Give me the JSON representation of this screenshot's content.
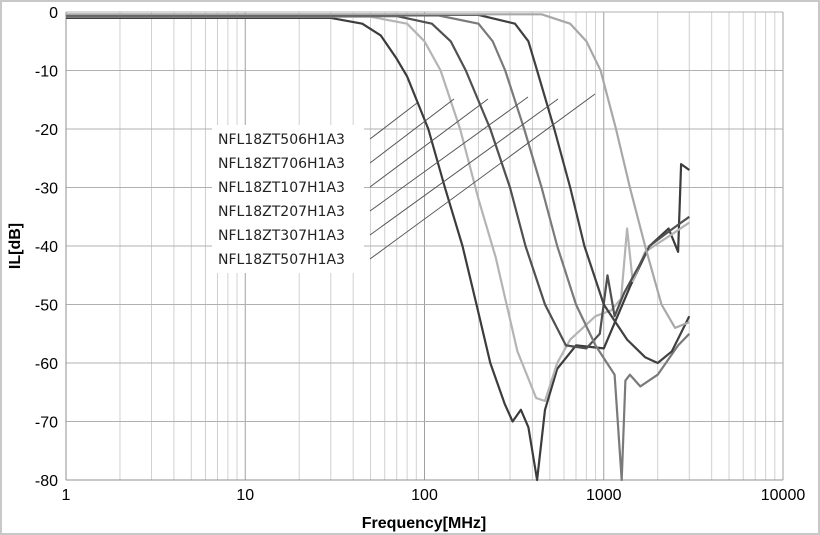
{
  "chart_data": {
    "type": "line",
    "xlabel": "Frequency[MHz]",
    "ylabel": "IL[dB]",
    "xscale": "log",
    "xlim": [
      1,
      10000
    ],
    "ylim": [
      -80,
      0
    ],
    "xticks": [
      "1",
      "10",
      "100",
      "1000",
      "10000"
    ],
    "yticks": [
      "0",
      "-10",
      "-20",
      "-30",
      "-40",
      "-50",
      "-60",
      "-70",
      "-80"
    ],
    "grid": true,
    "legend_placement": "center-left",
    "series": [
      {
        "name": "NFL18ZT506H1A3",
        "color": "#3c3c3c",
        "points": [
          [
            1,
            -1
          ],
          [
            30,
            -1
          ],
          [
            45,
            -2
          ],
          [
            57,
            -4
          ],
          [
            70,
            -8
          ],
          [
            80,
            -11
          ],
          [
            105,
            -20
          ],
          [
            130,
            -30
          ],
          [
            163,
            -40
          ],
          [
            195,
            -50
          ],
          [
            233,
            -60
          ],
          [
            280,
            -67
          ],
          [
            310,
            -70
          ],
          [
            345,
            -68
          ],
          [
            380,
            -71
          ],
          [
            425,
            -80
          ],
          [
            470,
            -68
          ],
          [
            550,
            -61
          ],
          [
            700,
            -57
          ],
          [
            1000,
            -57.5
          ],
          [
            1400,
            -47
          ],
          [
            1800,
            -40
          ],
          [
            2300,
            -37
          ],
          [
            2600,
            -41
          ],
          [
            2700,
            -26
          ],
          [
            3000,
            -27
          ]
        ]
      },
      {
        "name": "NFL18ZT706H1A3",
        "color": "#b4b4b4",
        "points": [
          [
            1,
            -0.8
          ],
          [
            50,
            -0.8
          ],
          [
            80,
            -2
          ],
          [
            100,
            -5
          ],
          [
            123,
            -10
          ],
          [
            158,
            -20
          ],
          [
            200,
            -32
          ],
          [
            250,
            -42
          ],
          [
            330,
            -58
          ],
          [
            420,
            -66
          ],
          [
            470,
            -66.5
          ],
          [
            550,
            -60
          ],
          [
            650,
            -56
          ],
          [
            900,
            -52
          ],
          [
            1100,
            -51
          ],
          [
            1250,
            -49
          ],
          [
            1350,
            -37
          ],
          [
            1450,
            -46
          ],
          [
            1700,
            -41
          ],
          [
            2400,
            -38
          ],
          [
            3000,
            -36
          ]
        ]
      },
      {
        "name": "NFL18ZT107H1A3",
        "color": "#505050",
        "points": [
          [
            1,
            -0.7
          ],
          [
            70,
            -0.7
          ],
          [
            110,
            -2
          ],
          [
            140,
            -5
          ],
          [
            170,
            -10
          ],
          [
            233,
            -20
          ],
          [
            300,
            -30
          ],
          [
            366,
            -40
          ],
          [
            470,
            -50
          ],
          [
            615,
            -57
          ],
          [
            800,
            -57.5
          ],
          [
            950,
            -55
          ],
          [
            1050,
            -45
          ],
          [
            1150,
            -52
          ],
          [
            1300,
            -48
          ],
          [
            1600,
            -43
          ],
          [
            1800,
            -40
          ],
          [
            2200,
            -38
          ],
          [
            2700,
            -36
          ],
          [
            3000,
            -35
          ]
        ]
      },
      {
        "name": "NFL18ZT207H1A3",
        "color": "#7a7a7a",
        "points": [
          [
            1,
            -0.6
          ],
          [
            120,
            -0.6
          ],
          [
            200,
            -2
          ],
          [
            240,
            -5
          ],
          [
            282,
            -10
          ],
          [
            360,
            -20
          ],
          [
            450,
            -30
          ],
          [
            550,
            -40
          ],
          [
            700,
            -50
          ],
          [
            900,
            -57
          ],
          [
            1150,
            -62
          ],
          [
            1260,
            -80
          ],
          [
            1320,
            -63
          ],
          [
            1400,
            -62
          ],
          [
            1600,
            -64
          ],
          [
            2000,
            -62
          ],
          [
            2600,
            -57
          ],
          [
            3000,
            -55
          ]
        ]
      },
      {
        "name": "NFL18ZT307H1A3",
        "color": "#404040",
        "points": [
          [
            1,
            -0.5
          ],
          [
            200,
            -0.5
          ],
          [
            320,
            -2
          ],
          [
            380,
            -5
          ],
          [
            425,
            -10
          ],
          [
            530,
            -20
          ],
          [
            650,
            -30
          ],
          [
            780,
            -40
          ],
          [
            1000,
            -50
          ],
          [
            1350,
            -56
          ],
          [
            1700,
            -59
          ],
          [
            2000,
            -60
          ],
          [
            2400,
            -58
          ],
          [
            3000,
            -52
          ]
        ]
      },
      {
        "name": "NFL18ZT507H1A3",
        "color": "#a8a8a8",
        "points": [
          [
            1,
            -0.4
          ],
          [
            450,
            -0.4
          ],
          [
            650,
            -2
          ],
          [
            800,
            -5
          ],
          [
            960,
            -10
          ],
          [
            1170,
            -20
          ],
          [
            1400,
            -30
          ],
          [
            1700,
            -40
          ],
          [
            2100,
            -50
          ],
          [
            2500,
            -54
          ],
          [
            3000,
            -53
          ]
        ]
      }
    ]
  }
}
